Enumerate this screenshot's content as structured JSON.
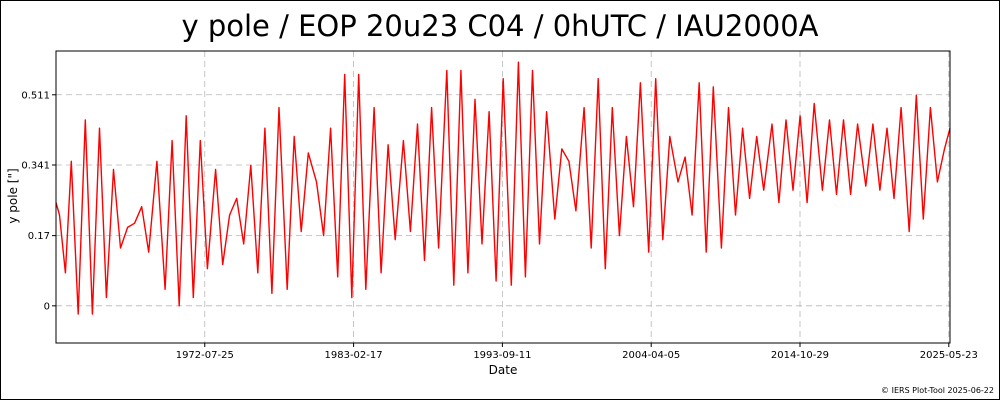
{
  "chart_data": {
    "type": "line",
    "title": "y pole / EOP 20u23 C04 / 0hUTC / IAU2000A",
    "xlabel": "Date",
    "ylabel": "y pole [\"]",
    "xlim": [
      "1962-01-01",
      "2025-06-23"
    ],
    "ylim": [
      -0.09,
      0.617
    ],
    "grid": true,
    "color": "#ff0000",
    "x_ticks": [
      "1972-07-25",
      "1983-02-17",
      "1993-09-11",
      "2004-04-05",
      "2014-10-29",
      "2025-05-23"
    ],
    "y_ticks": [
      0,
      0.17,
      0.341,
      0.511
    ],
    "y_tick_labels": [
      "0",
      "0.17",
      "0.341",
      "0.511"
    ],
    "series": [
      {
        "x": [
          "1962-01-01",
          "1962-04-01",
          "1962-09-01",
          "1963-02-01",
          "1963-08-01",
          "1964-02-01",
          "1964-08-01",
          "1965-02-01",
          "1965-08-01",
          "1966-02-01",
          "1966-08-01",
          "1967-02-01",
          "1967-08-01",
          "1968-02-01",
          "1968-08-01",
          "1969-03-01",
          "1969-10-01",
          "1970-04-01",
          "1970-10-01",
          "1971-04-01",
          "1971-10-01",
          "1972-04-01",
          "1972-10-01",
          "1973-05-01",
          "1973-11-01",
          "1974-05-01",
          "1974-11-01",
          "1975-05-01",
          "1975-11-01",
          "1976-05-01",
          "1976-11-01",
          "1977-05-01",
          "1977-11-01",
          "1978-06-01",
          "1978-12-01",
          "1979-06-01",
          "1979-12-01",
          "1980-07-01",
          "1981-01-01",
          "1981-07-01",
          "1982-01-01",
          "1982-07-01",
          "1983-01-01",
          "1983-07-01",
          "1984-01-01",
          "1984-08-01",
          "1985-02-01",
          "1985-08-01",
          "1986-02-01",
          "1986-09-01",
          "1987-03-01",
          "1987-09-01",
          "1988-03-01",
          "1988-09-01",
          "1989-03-01",
          "1989-10-01",
          "1990-04-01",
          "1990-10-01",
          "1991-04-01",
          "1991-10-01",
          "1992-04-01",
          "1992-10-01",
          "1993-04-01",
          "1993-10-01",
          "1994-05-01",
          "1994-11-01",
          "1995-05-01",
          "1995-11-01",
          "1996-05-01",
          "1996-11-01",
          "1997-06-01",
          "1997-12-01",
          "1998-06-01",
          "1998-12-01",
          "1999-07-01",
          "2000-01-01",
          "2000-07-01",
          "2001-01-01",
          "2001-07-01",
          "2002-01-01",
          "2002-07-01",
          "2003-01-01",
          "2003-07-01",
          "2004-02-01",
          "2004-08-01",
          "2005-02-01",
          "2005-08-01",
          "2006-03-01",
          "2006-09-01",
          "2007-03-01",
          "2007-09-01",
          "2008-03-01",
          "2008-09-01",
          "2009-04-01",
          "2009-10-01",
          "2010-04-01",
          "2010-10-01",
          "2011-04-01",
          "2011-10-01",
          "2012-04-01",
          "2012-11-01",
          "2013-05-01",
          "2013-11-01",
          "2014-05-01",
          "2014-11-01",
          "2015-05-01",
          "2015-11-01",
          "2016-06-01",
          "2016-12-01",
          "2017-06-01",
          "2017-12-01",
          "2018-06-01",
          "2018-12-01",
          "2019-07-01",
          "2020-01-01",
          "2020-07-01",
          "2021-01-01",
          "2021-07-01",
          "2022-01-01",
          "2022-08-01",
          "2023-02-01",
          "2023-08-01",
          "2024-02-01",
          "2024-08-01",
          "2025-02-01",
          "2025-06-23"
        ],
        "y": [
          0.25,
          0.22,
          0.08,
          0.35,
          -0.02,
          0.45,
          -0.02,
          0.43,
          0.02,
          0.33,
          0.14,
          0.19,
          0.2,
          0.24,
          0.13,
          0.35,
          0.04,
          0.4,
          0.0,
          0.46,
          0.02,
          0.4,
          0.09,
          0.33,
          0.1,
          0.22,
          0.26,
          0.15,
          0.34,
          0.08,
          0.43,
          0.03,
          0.48,
          0.04,
          0.41,
          0.18,
          0.37,
          0.3,
          0.17,
          0.43,
          0.07,
          0.56,
          0.02,
          0.56,
          0.04,
          0.48,
          0.08,
          0.39,
          0.16,
          0.4,
          0.18,
          0.44,
          0.11,
          0.48,
          0.14,
          0.57,
          0.05,
          0.57,
          0.08,
          0.5,
          0.15,
          0.47,
          0.06,
          0.55,
          0.05,
          0.59,
          0.07,
          0.57,
          0.15,
          0.47,
          0.21,
          0.38,
          0.35,
          0.23,
          0.48,
          0.14,
          0.55,
          0.09,
          0.48,
          0.17,
          0.41,
          0.24,
          0.54,
          0.13,
          0.55,
          0.16,
          0.41,
          0.3,
          0.36,
          0.22,
          0.54,
          0.13,
          0.53,
          0.14,
          0.48,
          0.22,
          0.43,
          0.26,
          0.41,
          0.28,
          0.44,
          0.25,
          0.45,
          0.28,
          0.46,
          0.25,
          0.49,
          0.28,
          0.45,
          0.27,
          0.45,
          0.27,
          0.44,
          0.29,
          0.44,
          0.28,
          0.43,
          0.26,
          0.48,
          0.18,
          0.51,
          0.21,
          0.48,
          0.3,
          0.38,
          0.43
        ]
      }
    ]
  },
  "footer": "© IERS Plot-Tool 2025-06-22"
}
